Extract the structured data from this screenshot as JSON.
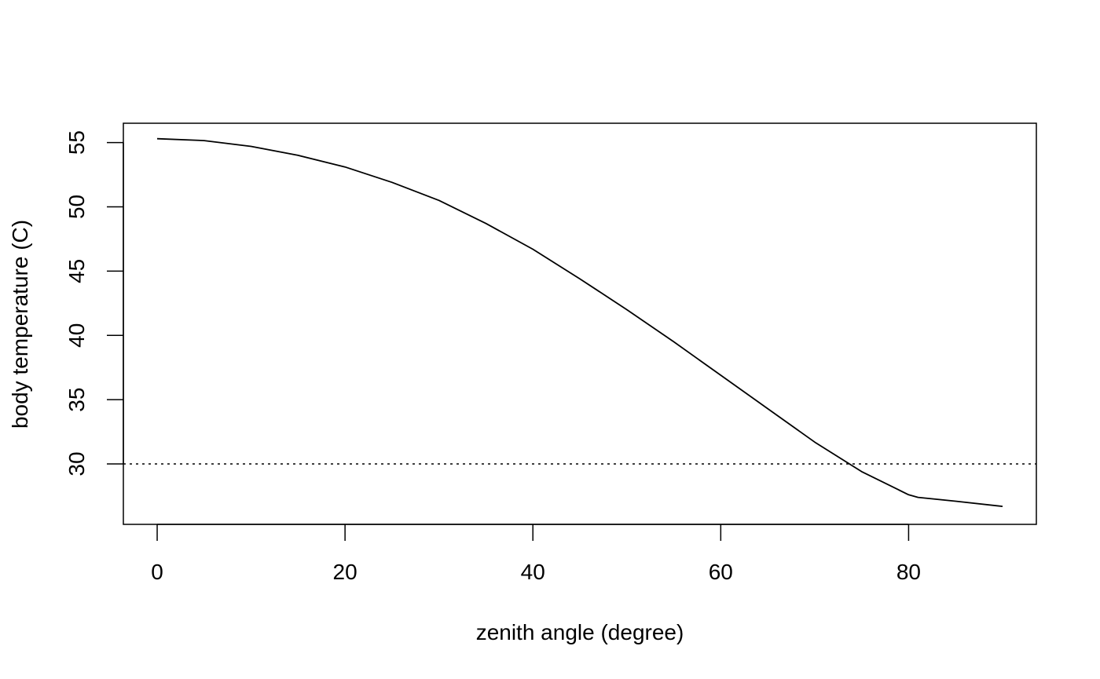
{
  "chart_data": {
    "type": "line",
    "xlabel": "zenith angle (degree)",
    "ylabel": "body temperature (C)",
    "xlim": [
      -3.6,
      93.6
    ],
    "ylim": [
      25.3,
      56.5
    ],
    "xticks": [
      0,
      20,
      40,
      60,
      80
    ],
    "yticks": [
      30,
      35,
      40,
      45,
      50,
      55
    ],
    "grid": false,
    "legend": "none",
    "series": [
      {
        "x": [
          0,
          5,
          10,
          15,
          20,
          25,
          30,
          35,
          40,
          45,
          50,
          55,
          60,
          65,
          70,
          75,
          80,
          81,
          85,
          90
        ],
        "y": [
          55.3,
          55.15,
          54.7,
          54.0,
          53.1,
          51.9,
          50.5,
          48.7,
          46.7,
          44.4,
          42.0,
          39.5,
          36.9,
          34.3,
          31.7,
          29.4,
          27.6,
          27.4,
          27.1,
          26.7
        ],
        "color": "#000000",
        "style": "solid"
      }
    ],
    "hlines": [
      {
        "y": 30,
        "style": "dotted",
        "color": "#000000"
      }
    ]
  }
}
